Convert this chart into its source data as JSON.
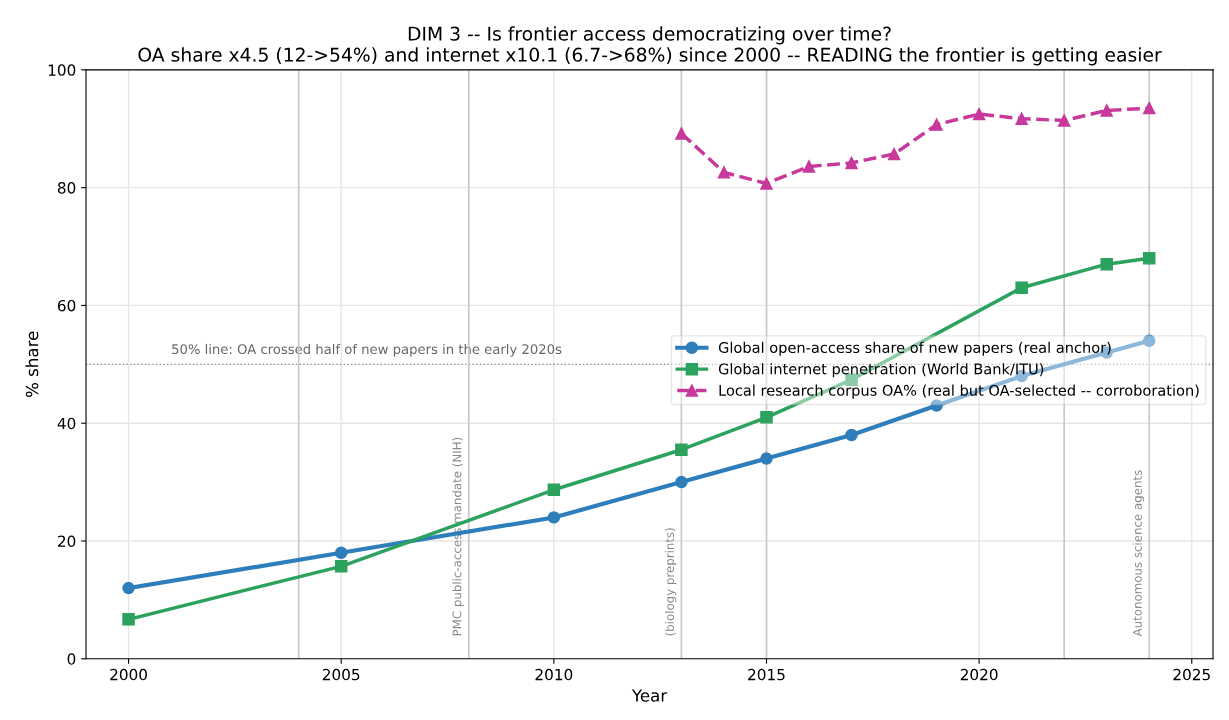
{
  "chart_data": {
    "type": "line",
    "title": "DIM 3 -- Is frontier access democratizing over time?",
    "subtitle": "OA share x4.5 (12->54%) and internet x10.1 (6.7->68%) since 2000 -- READING the frontier is getting easier",
    "xlabel": "Year",
    "ylabel": "% share",
    "xlim": [
      1999,
      2025.5
    ],
    "xticks": [
      2000,
      2005,
      2010,
      2015,
      2020,
      2025
    ],
    "ylim": [
      0,
      100
    ],
    "yticks": [
      0,
      20,
      40,
      60,
      80,
      100
    ],
    "grid": true,
    "legend": "right",
    "series": [
      {
        "name": "Global open-access share of new papers (real anchor)",
        "color": "#2f7ebc",
        "marker": "circle",
        "line_style": "solid",
        "x": [
          2000,
          2005,
          2010,
          2013,
          2015,
          2017,
          2019,
          2021,
          2023,
          2024
        ],
        "values": [
          12,
          18,
          24,
          30,
          34,
          38,
          43,
          48,
          52,
          54
        ]
      },
      {
        "name": "Global internet penetration (World Bank/ITU)",
        "color": "#2ca25f",
        "marker": "square",
        "line_style": "solid",
        "x": [
          2000,
          2005,
          2010,
          2013,
          2015,
          2017,
          2021,
          2023,
          2024
        ],
        "values": [
          6.7,
          15.7,
          28.7,
          35.5,
          41,
          47.4,
          63,
          67,
          68
        ]
      },
      {
        "name": "Local research corpus OA% (real but OA-selected -- corroboration)",
        "color": "#c7399a",
        "marker": "triangle",
        "line_style": "dashed",
        "x": [
          2013,
          2014,
          2015,
          2016,
          2017,
          2018,
          2019,
          2020,
          2021,
          2022,
          2023,
          2024
        ],
        "values": [
          89.2,
          82.6,
          80.7,
          83.6,
          84.2,
          85.7,
          90.7,
          92.5,
          91.7,
          91.4,
          93.1,
          93.5
        ]
      }
    ],
    "ref_lines": [
      {
        "axis": "y",
        "value": 50,
        "label": "50% line: OA crossed half of new papers in the early 2020s",
        "color": "#888888",
        "line_style": "dotted"
      },
      {
        "axis": "x",
        "value": 2004,
        "label": null,
        "color": "#c8c8c8",
        "line_style": "solid"
      },
      {
        "axis": "x",
        "value": 2008,
        "label": "PMC public-access mandate (NIH)",
        "color": "#c8c8c8",
        "line_style": "solid"
      },
      {
        "axis": "x",
        "value": 2013,
        "label": "(biology preprints)",
        "color": "#c8c8c8",
        "line_style": "solid"
      },
      {
        "axis": "x",
        "value": 2015,
        "label": null,
        "color": "#c8c8c8",
        "line_style": "solid"
      },
      {
        "axis": "x",
        "value": 2022,
        "label": null,
        "color": "#c8c8c8",
        "line_style": "solid"
      },
      {
        "axis": "x",
        "value": 2024,
        "label": "Autonomous science agents",
        "color": "#c8c8c8",
        "line_style": "solid"
      }
    ]
  }
}
